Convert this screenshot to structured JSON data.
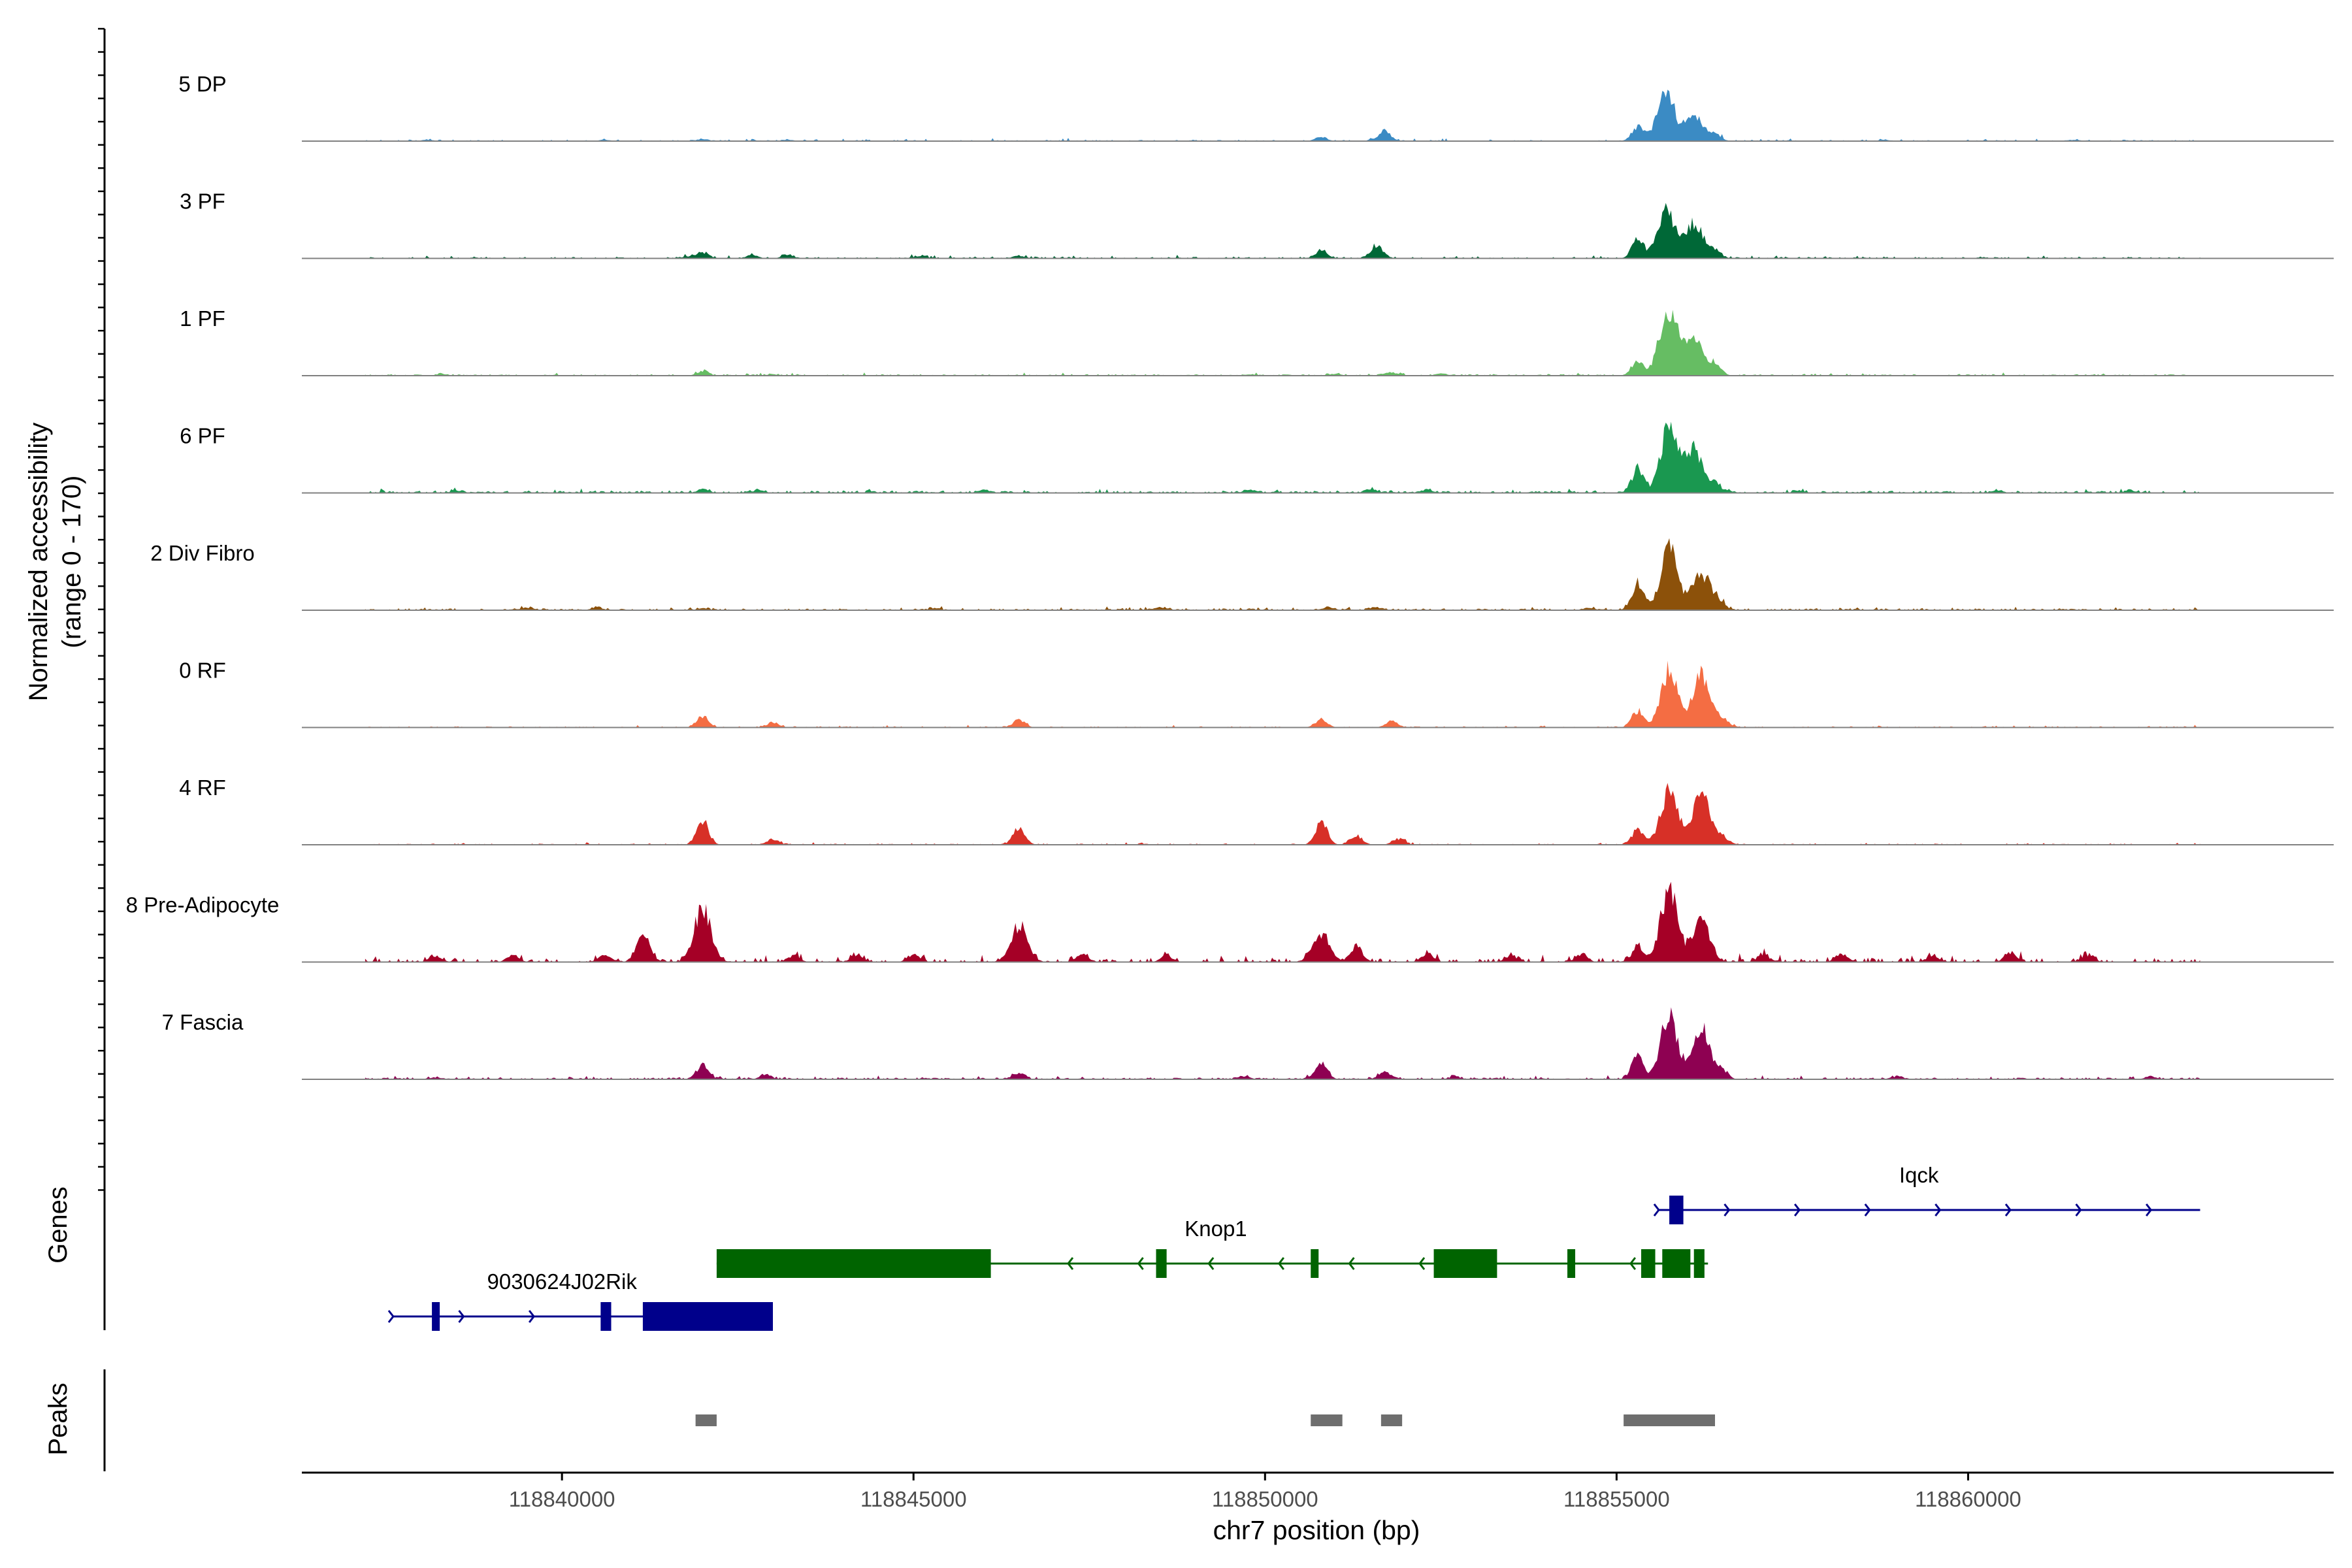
{
  "chart_data": {
    "type": "area",
    "title": "",
    "chromosome": "chr7",
    "xlabel": "chr7 position (bp)",
    "ylabel": "Normalized accessibility",
    "ylabel_range": "(range 0 - 170)",
    "xlim": [
      118836300,
      118865200
    ],
    "ylim": [
      0,
      170
    ],
    "x_ticks": [
      118840000,
      118845000,
      118850000,
      118855000,
      118860000
    ],
    "x_tick_labels": [
      "118840000",
      "118845000",
      "118850000",
      "118855000",
      "118860000"
    ],
    "coverage_start": 118837200,
    "coverage_end": 118863300,
    "tracks": [
      {
        "name": "5 DP",
        "color": "#3b8bc4",
        "noise": 2.0,
        "sparse": 0.55,
        "peaks": [
          [
            118838100,
            2
          ],
          [
            118840600,
            2
          ],
          [
            118842000,
            3
          ],
          [
            118843200,
            2
          ],
          [
            118850800,
            6
          ],
          [
            118851700,
            16
          ],
          [
            118855300,
            22
          ],
          [
            118855700,
            75
          ],
          [
            118856100,
            42
          ],
          [
            118856400,
            10
          ],
          [
            118858800,
            2
          ],
          [
            118861500,
            2
          ]
        ]
      },
      {
        "name": "3 PF",
        "color": "#006837",
        "noise": 2.5,
        "sparse": 0.5,
        "peaks": [
          [
            118841800,
            3
          ],
          [
            118842000,
            9
          ],
          [
            118842700,
            5
          ],
          [
            118843200,
            5
          ],
          [
            118845100,
            3
          ],
          [
            118846500,
            4
          ],
          [
            118850800,
            12
          ],
          [
            118851600,
            18
          ],
          [
            118855300,
            28
          ],
          [
            118855700,
            78
          ],
          [
            118856100,
            55
          ],
          [
            118856400,
            12
          ]
        ]
      },
      {
        "name": "1 PF",
        "color": "#66bd63",
        "noise": 2.2,
        "sparse": 0.4,
        "peaks": [
          [
            118838300,
            2
          ],
          [
            118842000,
            7
          ],
          [
            118843000,
            2
          ],
          [
            118849800,
            2
          ],
          [
            118851000,
            3
          ],
          [
            118851800,
            5
          ],
          [
            118852500,
            3
          ],
          [
            118855300,
            22
          ],
          [
            118855600,
            15
          ],
          [
            118855750,
            92
          ],
          [
            118856100,
            60
          ],
          [
            118856400,
            18
          ]
        ]
      },
      {
        "name": "6 PF",
        "color": "#1a9850",
        "noise": 3.2,
        "sparse": 0.3,
        "peaks": [
          [
            118838500,
            3
          ],
          [
            118842000,
            5
          ],
          [
            118842800,
            4
          ],
          [
            118846000,
            4
          ],
          [
            118849800,
            5
          ],
          [
            118851500,
            5
          ],
          [
            118852300,
            5
          ],
          [
            118855300,
            35
          ],
          [
            118855750,
            98
          ],
          [
            118856100,
            70
          ],
          [
            118856400,
            14
          ],
          [
            118857600,
            3
          ],
          [
            118860400,
            3
          ],
          [
            118862300,
            3
          ]
        ]
      },
      {
        "name": "2 Div Fibro",
        "color": "#8c510a",
        "noise": 2.6,
        "sparse": 0.35,
        "peaks": [
          [
            118839500,
            4
          ],
          [
            118840500,
            4
          ],
          [
            118842000,
            3
          ],
          [
            118845300,
            3
          ],
          [
            118848500,
            4
          ],
          [
            118850900,
            4
          ],
          [
            118851600,
            4
          ],
          [
            118854600,
            3
          ],
          [
            118855300,
            40
          ],
          [
            118855750,
            95
          ],
          [
            118856200,
            58
          ],
          [
            118856450,
            14
          ]
        ]
      },
      {
        "name": "0 RF",
        "color": "#f46d43",
        "noise": 1.8,
        "sparse": 0.5,
        "peaks": [
          [
            118842000,
            18
          ],
          [
            118843000,
            8
          ],
          [
            118846500,
            12
          ],
          [
            118850800,
            12
          ],
          [
            118851800,
            10
          ],
          [
            118855300,
            25
          ],
          [
            118855750,
            88
          ],
          [
            118856200,
            78
          ],
          [
            118856500,
            15
          ]
        ]
      },
      {
        "name": "4 RF",
        "color": "#d73027",
        "noise": 1.8,
        "sparse": 0.5,
        "peaks": [
          [
            118842000,
            38
          ],
          [
            118843000,
            8
          ],
          [
            118846500,
            28
          ],
          [
            118850800,
            36
          ],
          [
            118851300,
            14
          ],
          [
            118851900,
            9
          ],
          [
            118855300,
            22
          ],
          [
            118855750,
            82
          ],
          [
            118856200,
            78
          ],
          [
            118856500,
            12
          ]
        ]
      },
      {
        "name": "8 Pre-Adipocyte",
        "color": "#a50026",
        "noise": 6.0,
        "sparse": 0.6,
        "peaks": [
          [
            118838200,
            10
          ],
          [
            118839300,
            10
          ],
          [
            118840600,
            12
          ],
          [
            118841100,
            18
          ],
          [
            118841200,
            28
          ],
          [
            118842000,
            82
          ],
          [
            118843300,
            10
          ],
          [
            118844200,
            12
          ],
          [
            118845000,
            10
          ],
          [
            118846500,
            55
          ],
          [
            118847400,
            12
          ],
          [
            118848600,
            10
          ],
          [
            118850800,
            45
          ],
          [
            118851300,
            25
          ],
          [
            118852300,
            12
          ],
          [
            118853500,
            10
          ],
          [
            118854500,
            12
          ],
          [
            118855300,
            22
          ],
          [
            118855750,
            112
          ],
          [
            118856200,
            68
          ],
          [
            118857100,
            10
          ],
          [
            118858200,
            12
          ],
          [
            118859500,
            10
          ],
          [
            118860600,
            14
          ],
          [
            118861700,
            10
          ]
        ]
      },
      {
        "name": "7 Fascia",
        "color": "#8e0152",
        "noise": 2.8,
        "sparse": 0.35,
        "peaks": [
          [
            118838200,
            3
          ],
          [
            118842000,
            22
          ],
          [
            118842900,
            6
          ],
          [
            118846500,
            10
          ],
          [
            118849700,
            4
          ],
          [
            118850800,
            26
          ],
          [
            118851700,
            12
          ],
          [
            118852700,
            4
          ],
          [
            118855300,
            35
          ],
          [
            118855750,
            98
          ],
          [
            118856200,
            80
          ],
          [
            118856500,
            12
          ],
          [
            118859000,
            4
          ],
          [
            118862600,
            4
          ]
        ]
      }
    ],
    "genes": [
      {
        "name": "9030624J02Rik",
        "strand": "+",
        "color": "#00008b",
        "start": 118837600,
        "end": 118843000,
        "row": 2,
        "exons": [
          [
            118838150,
            118838250
          ],
          [
            118840550,
            118840700
          ],
          [
            118841150,
            118843000
          ]
        ]
      },
      {
        "name": "Knop1",
        "strand": "-",
        "color": "#006400",
        "start": 118842200,
        "end": 118856300,
        "row": 1,
        "exons": [
          [
            118842200,
            118846100
          ],
          [
            118848450,
            118848600
          ],
          [
            118850650,
            118850750
          ],
          [
            118852400,
            118853300
          ],
          [
            118854300,
            118854400
          ],
          [
            118855350,
            118855550
          ],
          [
            118855650,
            118856050
          ],
          [
            118856100,
            118856250
          ]
        ]
      },
      {
        "name": "Iqck",
        "strand": "+",
        "color": "#00008b",
        "start": 118855600,
        "end": 118863300,
        "row": 0,
        "exons": [
          [
            118855750,
            118855950
          ]
        ]
      }
    ],
    "peaks": [
      [
        118841900,
        118842200
      ],
      [
        118850650,
        118851100
      ],
      [
        118851650,
        118851950
      ],
      [
        118855100,
        118856400
      ]
    ],
    "panel_labels": {
      "genes": "Genes",
      "peaks": "Peaks"
    },
    "colors": {
      "axis": "#000000",
      "baseline": "#808080",
      "peak_box": "#6e6e6e",
      "tick_label": "#4d4d4d"
    }
  }
}
